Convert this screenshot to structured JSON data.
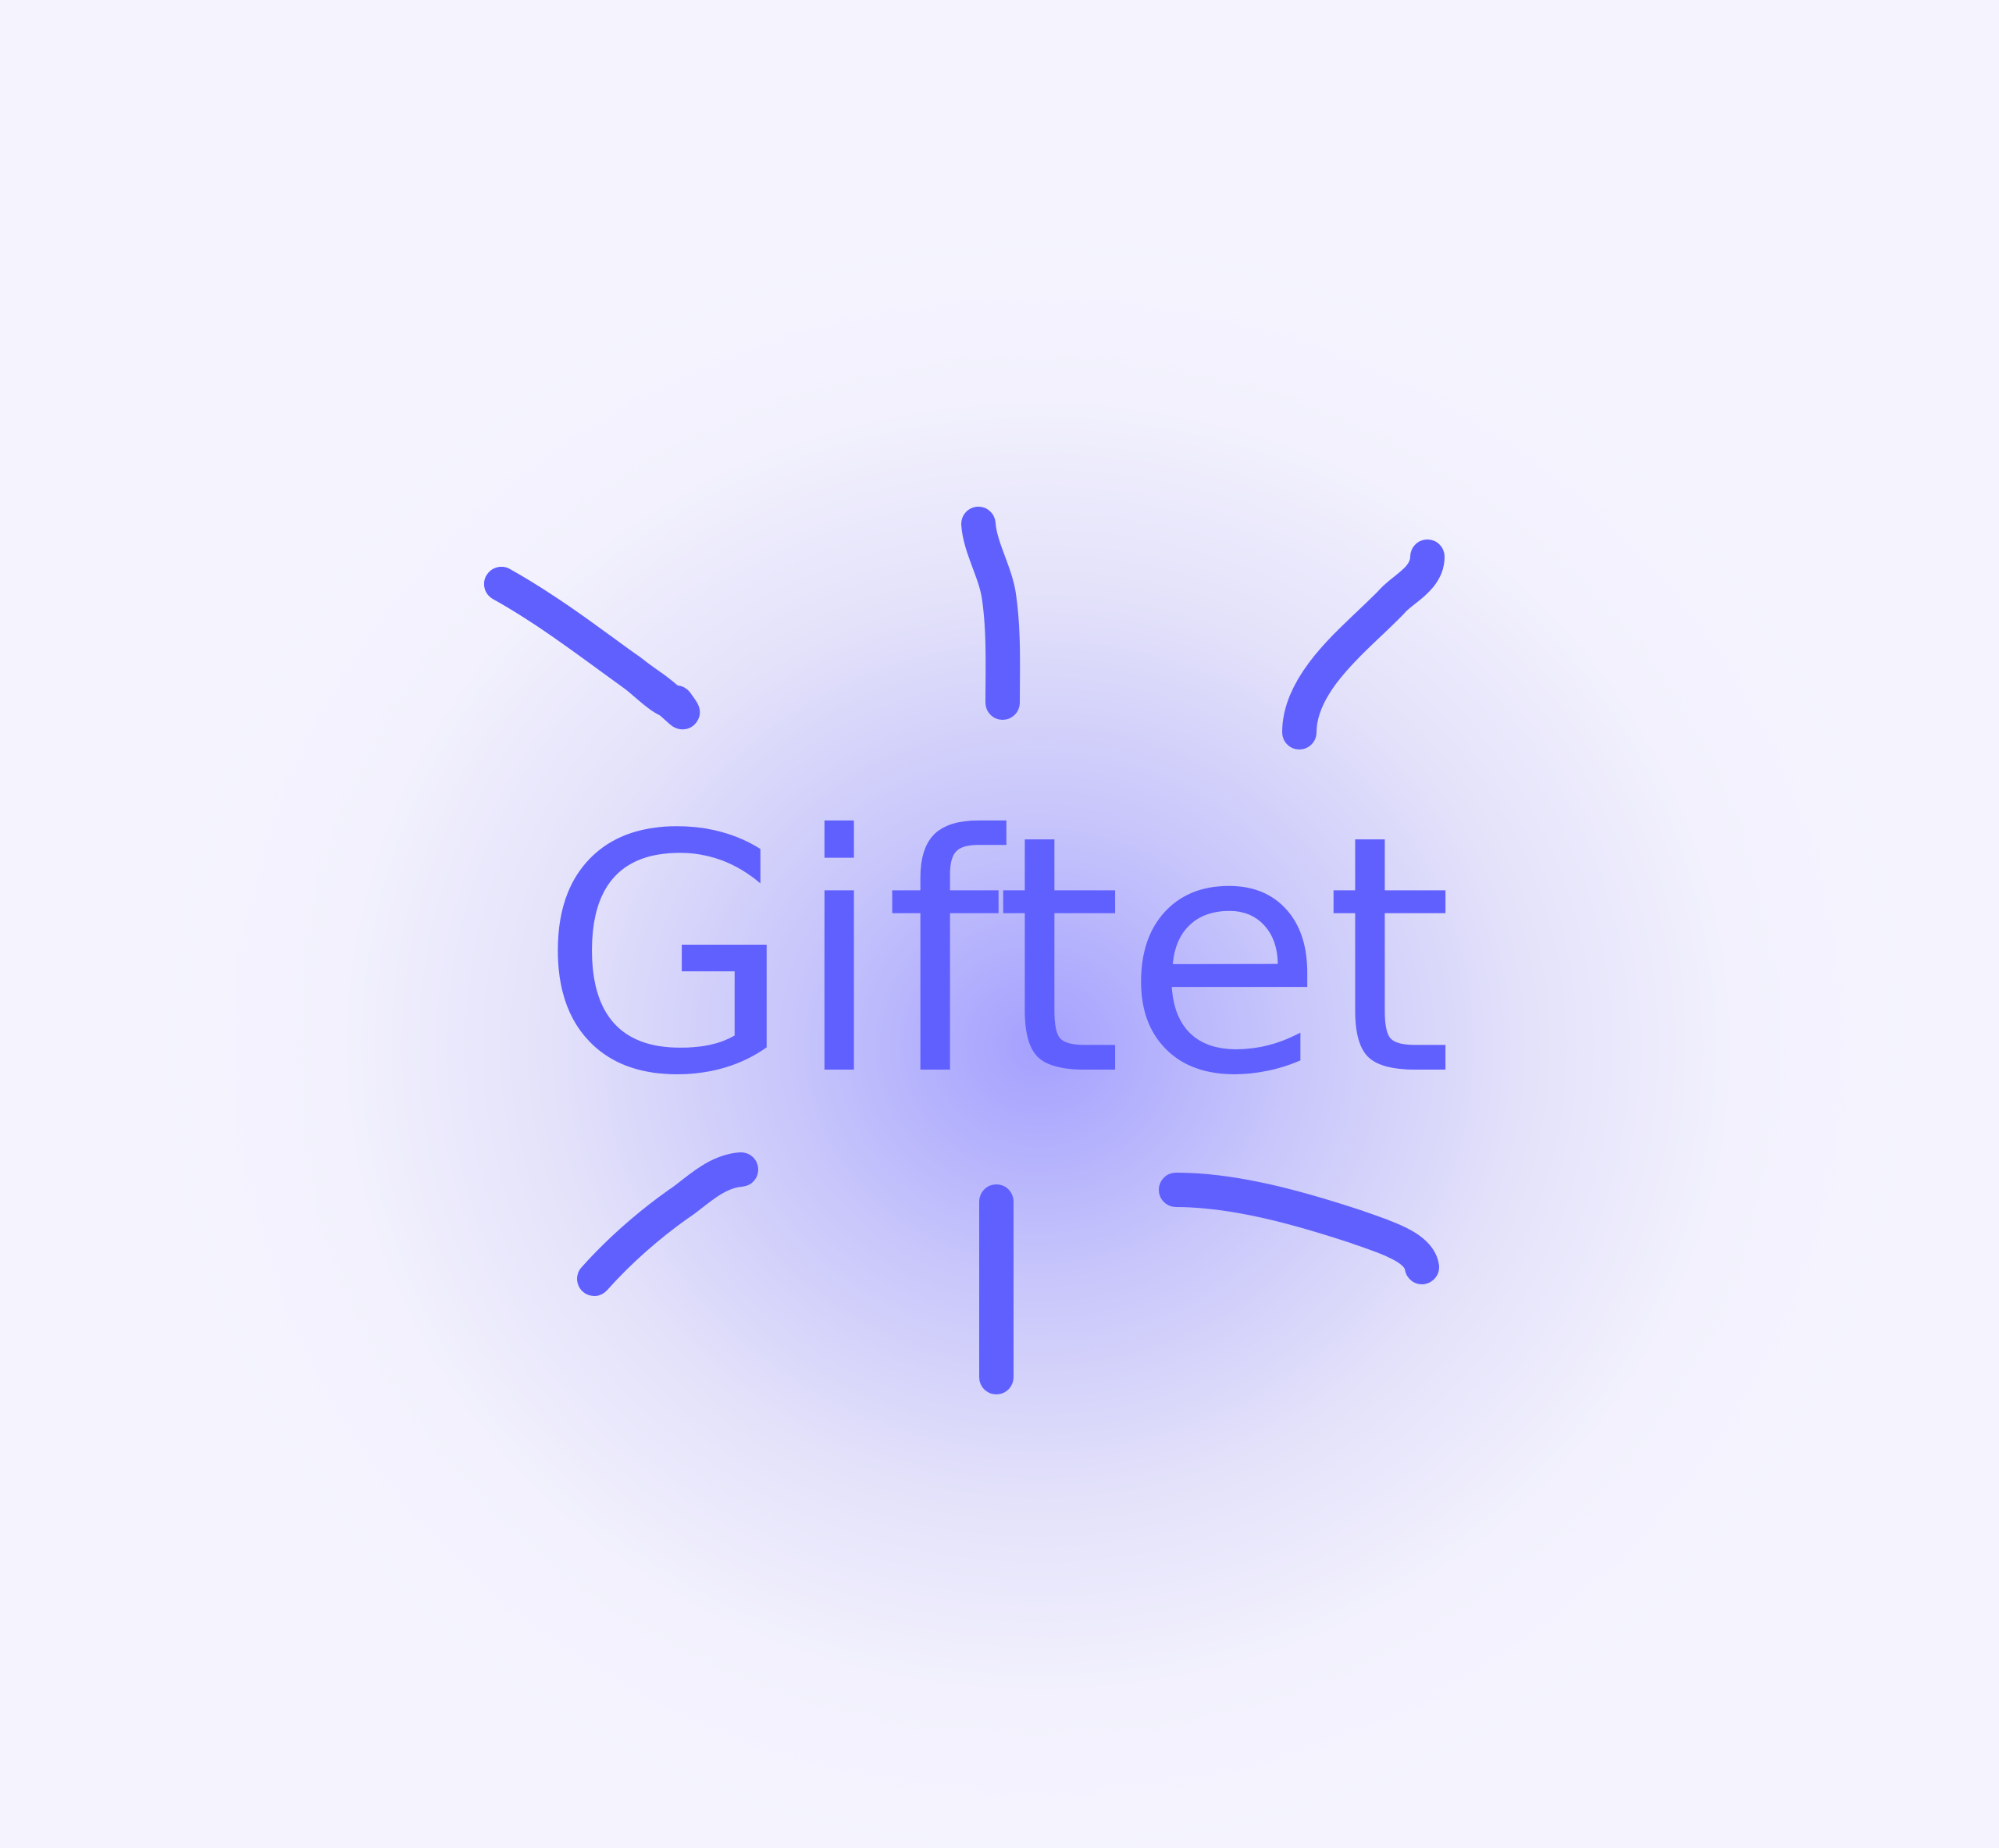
{
  "logo": {
    "wordmark": "Giftet",
    "ray_color": "#6060ff",
    "text_color": "#6060ff",
    "background_color": "#f5f4fe",
    "glow_color": "#a09cff",
    "icon": "sparkle-burst-icon"
  }
}
